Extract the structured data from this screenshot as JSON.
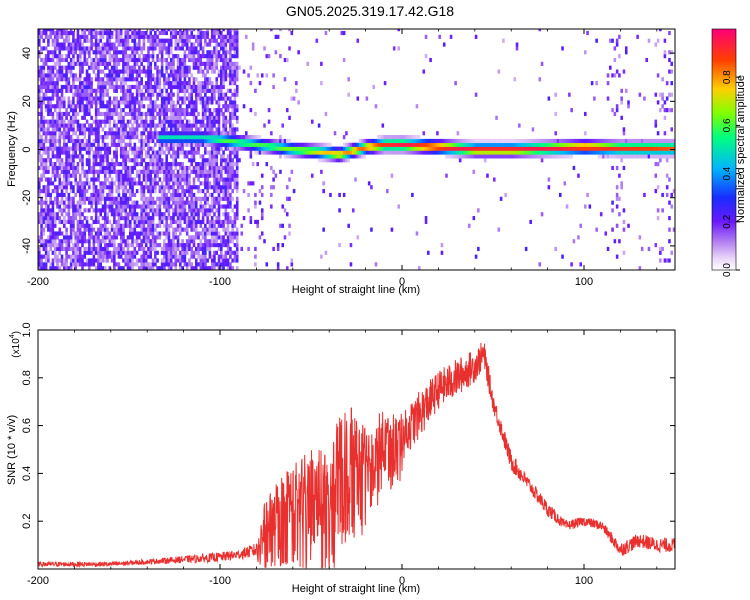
{
  "title": "GN05.2025.319.17.42.G18",
  "colors": {
    "line": "#e8302e",
    "colormap": [
      "#ffffff",
      "#e8d4f7",
      "#b07cf0",
      "#7b2ff0",
      "#3a00ff",
      "#0050ff",
      "#00c8ff",
      "#00ff80",
      "#c8ff00",
      "#ffd000",
      "#ff4000",
      "#ff0060"
    ]
  },
  "chart_data": [
    {
      "type": "heatmap",
      "title": "GN05.2025.319.17.42.G18",
      "xlabel": "Height of straight line (km)",
      "ylabel": "Frequency (Hz)",
      "xlim": [
        -200,
        150
      ],
      "ylim": [
        -50,
        50
      ],
      "x_ticks": [
        "-200",
        "-100",
        "0",
        "100"
      ],
      "y_ticks": [
        "-40",
        "-20",
        "0",
        "20",
        "40"
      ],
      "colorbar": {
        "label": "Normalized spectral amplitude",
        "range": [
          0,
          1
        ],
        "ticks": [
          "0.0",
          "0.2",
          "0.4",
          "0.6",
          "0.8"
        ]
      },
      "ridge": {
        "x_km": [
          -135,
          -110,
          -100,
          -80,
          -60,
          -45,
          -35,
          -20,
          -10,
          0,
          20,
          40,
          60,
          80,
          100,
          120,
          150
        ],
        "freq_hz": [
          5,
          5,
          4,
          2,
          0,
          -1,
          -2,
          1,
          2,
          2,
          1,
          0,
          0,
          0.5,
          1,
          0.5,
          0.5
        ],
        "amplitude": [
          0.5,
          0.5,
          0.6,
          0.6,
          0.65,
          0.75,
          0.8,
          0.85,
          0.9,
          0.95,
          0.95,
          0.95,
          0.95,
          0.95,
          0.95,
          0.9,
          0.85
        ]
      }
    },
    {
      "type": "line",
      "xlabel": "Height of straight line (km)",
      "ylabel": "SNR (10 * v/v)",
      "y_scale_label": "(x10",
      "y_scale_exp": "4",
      "xlim": [
        -200,
        150
      ],
      "ylim": [
        0,
        1.0
      ],
      "x_ticks": [
        "-200",
        "-100",
        "0",
        "100"
      ],
      "y_ticks": [
        "0.2",
        "0.4",
        "0.6",
        "0.8",
        "1.0"
      ],
      "series": [
        {
          "x": [
            -200,
            -180,
            -160,
            -140,
            -120,
            -100,
            -90,
            -80,
            -75,
            -70,
            -60,
            -50,
            -40,
            -30,
            -20,
            -10,
            0,
            10,
            20,
            30,
            40,
            45,
            50,
            60,
            70,
            80,
            90,
            100,
            110,
            120,
            130,
            140,
            150
          ],
          "y": [
            0.02,
            0.02,
            0.02,
            0.03,
            0.04,
            0.05,
            0.06,
            0.08,
            0.2,
            0.25,
            0.3,
            0.32,
            0.35,
            0.5,
            0.45,
            0.55,
            0.55,
            0.65,
            0.75,
            0.8,
            0.85,
            0.9,
            0.7,
            0.45,
            0.35,
            0.25,
            0.18,
            0.2,
            0.18,
            0.08,
            0.12,
            0.1,
            0.1
          ],
          "noise": [
            0.01,
            0.01,
            0.01,
            0.01,
            0.015,
            0.02,
            0.02,
            0.03,
            0.1,
            0.12,
            0.15,
            0.18,
            0.2,
            0.2,
            0.15,
            0.12,
            0.1,
            0.1,
            0.08,
            0.08,
            0.07,
            0.06,
            0.04,
            0.04,
            0.03,
            0.03,
            0.02,
            0.02,
            0.02,
            0.03,
            0.03,
            0.03,
            0.03
          ]
        }
      ]
    }
  ]
}
